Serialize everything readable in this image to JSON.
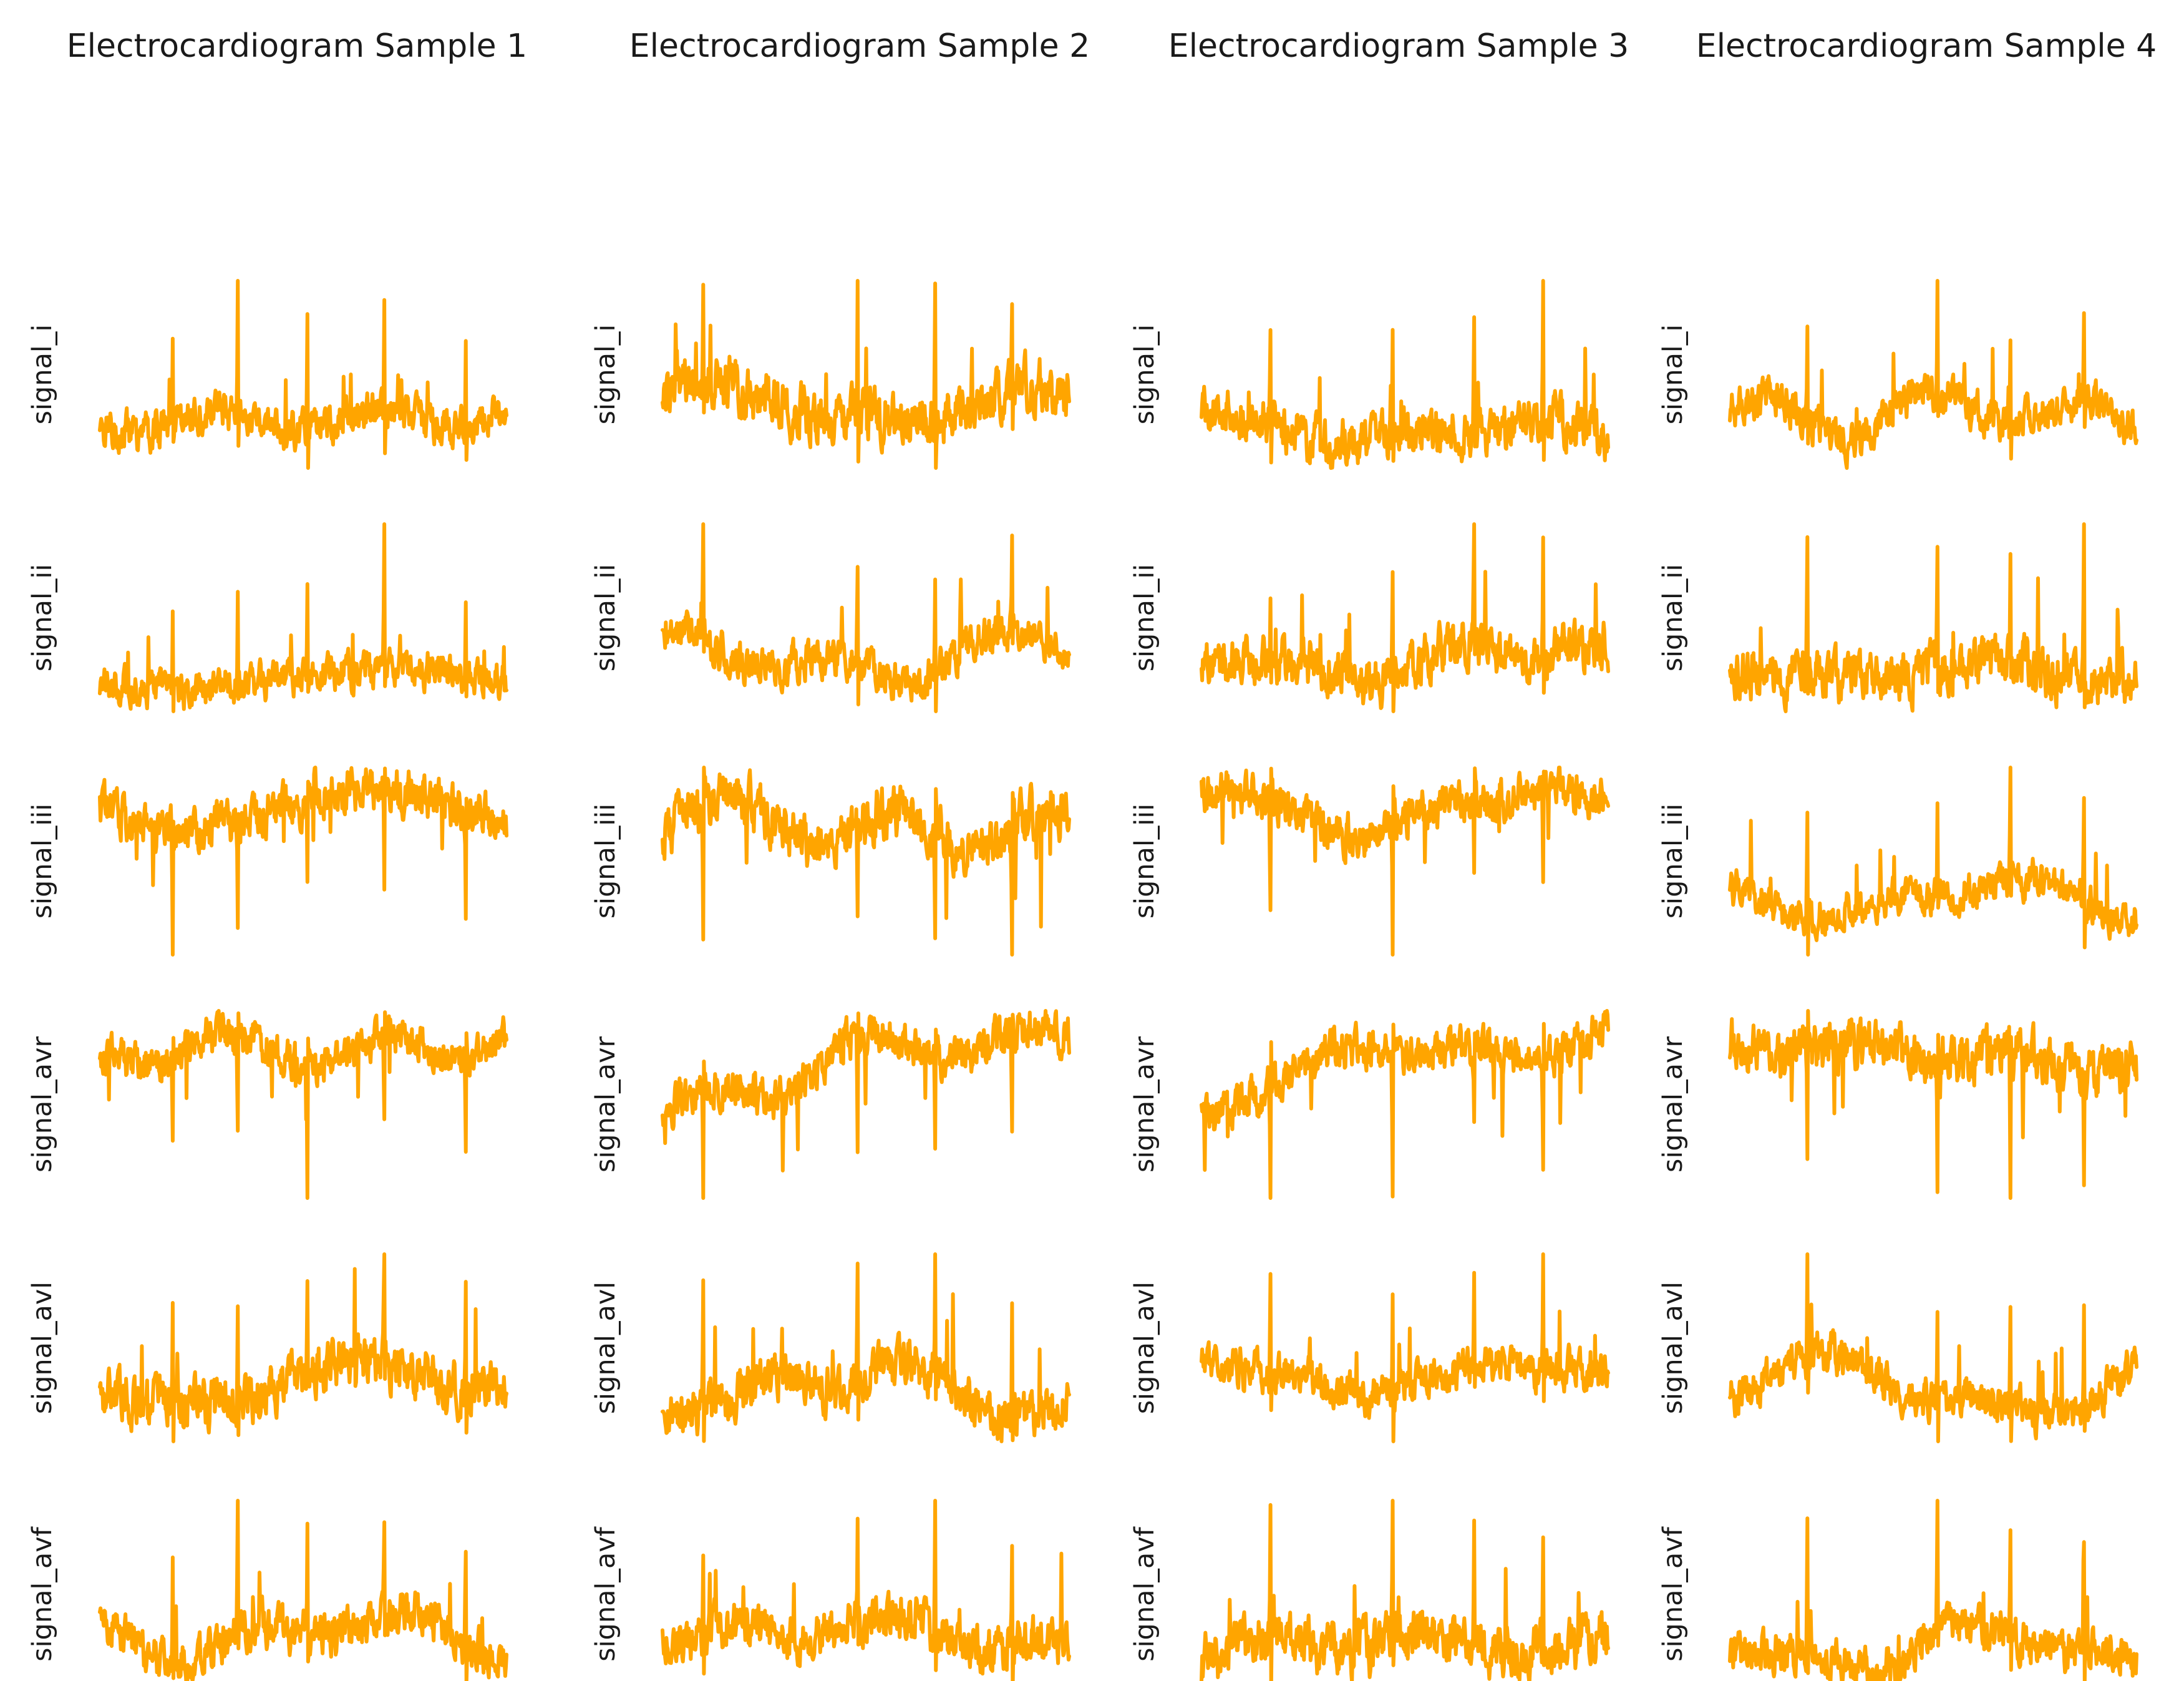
{
  "chart_data": {
    "type": "line",
    "grid": false,
    "axes_visible": false,
    "line_color": "#FFA500",
    "columns": [
      {
        "title": "Electrocardiogram Sample 1",
        "seed": 11,
        "beats": [
          0.18,
          0.34,
          0.51,
          0.7,
          0.9
        ]
      },
      {
        "title": "Electrocardiogram Sample 2",
        "seed": 23,
        "beats": [
          0.1,
          0.48,
          0.67,
          0.86
        ]
      },
      {
        "title": "Electrocardiogram Sample 3",
        "seed": 37,
        "beats": [
          0.17,
          0.47,
          0.67,
          0.84
        ]
      },
      {
        "title": "Electrocardiogram Sample 4",
        "seed": 53,
        "beats": [
          0.19,
          0.51,
          0.69,
          0.87
        ]
      }
    ],
    "rows": [
      {
        "label": "signal_i"
      },
      {
        "label": "signal_ii"
      },
      {
        "label": "signal_iii"
      },
      {
        "label": "signal_avr"
      },
      {
        "label": "signal_avl"
      },
      {
        "label": "signal_avf"
      }
    ]
  }
}
